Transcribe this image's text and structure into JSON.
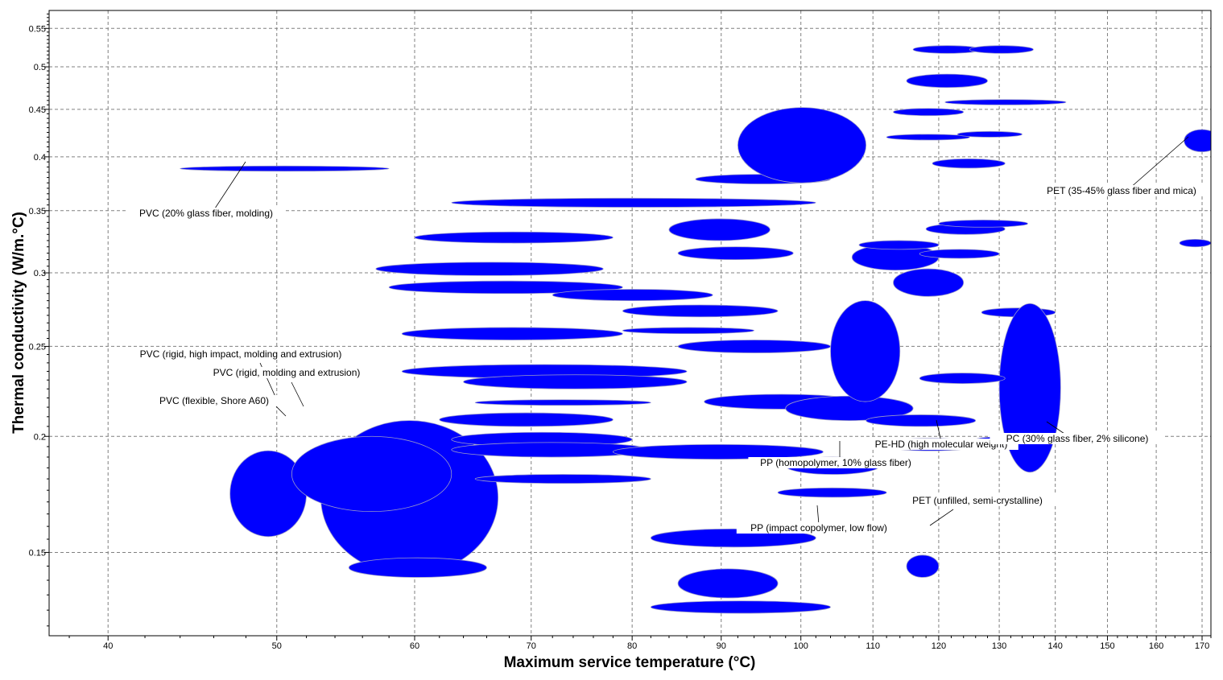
{
  "chart_data": {
    "type": "scatter",
    "title": "",
    "xlabel": "Maximum service temperature (°C)",
    "ylabel": "Thermal conductivity (W/m.°C)",
    "x_scale": "log",
    "y_scale": "log",
    "xlim": [
      37,
      172
    ],
    "ylim": [
      0.122,
      0.575
    ],
    "grid": true,
    "x_ticks": [
      40,
      50,
      60,
      70,
      80,
      90,
      100,
      110,
      120,
      130,
      140,
      150,
      160,
      170
    ],
    "y_ticks": [
      0.15,
      0.2,
      0.25,
      0.3,
      0.35,
      0.4,
      0.45,
      0.5,
      0.55
    ],
    "mark_color": "#0000ff",
    "mark_shape": "ellipse",
    "points": [
      {
        "x_range": [
          53,
          67
        ],
        "y_range": [
          0.142,
          0.208
        ]
      },
      {
        "x_range": [
          47,
          52
        ],
        "y_range": [
          0.156,
          0.193
        ]
      },
      {
        "x_range": [
          55,
          66
        ],
        "y_range": [
          0.141,
          0.148
        ]
      },
      {
        "x_range": [
          51,
          63
        ],
        "y_range": [
          0.166,
          0.2
        ]
      },
      {
        "x_range": [
          65,
          82
        ],
        "y_range": [
          0.178,
          0.182
        ]
      },
      {
        "x_range": [
          44,
          58
        ],
        "y_range": [
          0.386,
          0.391
        ]
      },
      {
        "x_range": [
          63,
          102
        ],
        "y_range": [
          0.353,
          0.361
        ]
      },
      {
        "x_range": [
          60,
          78
        ],
        "y_range": [
          0.323,
          0.332
        ]
      },
      {
        "x_range": [
          57,
          77
        ],
        "y_range": [
          0.298,
          0.308
        ]
      },
      {
        "x_range": [
          58,
          79
        ],
        "y_range": [
          0.285,
          0.294
        ]
      },
      {
        "x_range": [
          59,
          79
        ],
        "y_range": [
          0.254,
          0.262
        ]
      },
      {
        "x_range": [
          59,
          86
        ],
        "y_range": [
          0.231,
          0.239
        ]
      },
      {
        "x_range": [
          64,
          86
        ],
        "y_range": [
          0.225,
          0.233
        ]
      },
      {
        "x_range": [
          62,
          78
        ],
        "y_range": [
          0.205,
          0.212
        ]
      },
      {
        "x_range": [
          63,
          80
        ],
        "y_range": [
          0.195,
          0.202
        ]
      },
      {
        "x_range": [
          63,
          82
        ],
        "y_range": [
          0.19,
          0.197
        ]
      },
      {
        "x_range": [
          65,
          82
        ],
        "y_range": [
          0.216,
          0.219
        ]
      },
      {
        "x_range": [
          72,
          89
        ],
        "y_range": [
          0.28,
          0.288
        ]
      },
      {
        "x_range": [
          79,
          97
        ],
        "y_range": [
          0.269,
          0.277
        ]
      },
      {
        "x_range": [
          79,
          94
        ],
        "y_range": [
          0.258,
          0.262
        ]
      },
      {
        "x_range": [
          85,
          104
        ],
        "y_range": [
          0.246,
          0.254
        ]
      },
      {
        "x_range": [
          78,
          103
        ],
        "y_range": [
          0.189,
          0.196
        ]
      },
      {
        "x_range": [
          85,
          99
        ],
        "y_range": [
          0.31,
          0.32
        ]
      },
      {
        "x_range": [
          84,
          96
        ],
        "y_range": [
          0.325,
          0.343
        ]
      },
      {
        "x_range": [
          87,
          104
        ],
        "y_range": [
          0.374,
          0.383
        ]
      },
      {
        "x_range": [
          92,
          109
        ],
        "y_range": [
          0.375,
          0.452
        ]
      },
      {
        "x_range": [
          88,
          108
        ],
        "y_range": [
          0.214,
          0.222
        ]
      },
      {
        "x_range": [
          98,
          116
        ],
        "y_range": [
          0.208,
          0.221
        ]
      },
      {
        "x_range": [
          98,
          111
        ],
        "y_range": [
          0.182,
          0.19
        ]
      },
      {
        "x_range": [
          82,
          102
        ],
        "y_range": [
          0.152,
          0.159
        ]
      },
      {
        "x_range": [
          85,
          97
        ],
        "y_range": [
          0.134,
          0.144
        ]
      },
      {
        "x_range": [
          82,
          104
        ],
        "y_range": [
          0.129,
          0.133
        ]
      },
      {
        "x_range": [
          97,
          112
        ],
        "y_range": [
          0.172,
          0.176
        ]
      },
      {
        "x_range": [
          104,
          114
        ],
        "y_range": [
          0.218,
          0.28
        ]
      },
      {
        "x_range": [
          107,
          120
        ],
        "y_range": [
          0.302,
          0.322
        ]
      },
      {
        "x_range": [
          108,
          120
        ],
        "y_range": [
          0.318,
          0.325
        ]
      },
      {
        "x_range": [
          113,
          124
        ],
        "y_range": [
          0.283,
          0.303
        ]
      },
      {
        "x_range": [
          118,
          131
        ],
        "y_range": [
          0.33,
          0.339
        ]
      },
      {
        "x_range": [
          112,
          125
        ],
        "y_range": [
          0.417,
          0.423
        ]
      },
      {
        "x_range": [
          113,
          124
        ],
        "y_range": [
          0.443,
          0.451
        ]
      },
      {
        "x_range": [
          119,
          131
        ],
        "y_range": [
          0.389,
          0.398
        ]
      },
      {
        "x_range": [
          123,
          134
        ],
        "y_range": [
          0.42,
          0.426
        ]
      },
      {
        "x_range": [
          115,
          128
        ],
        "y_range": [
          0.475,
          0.491
        ]
      },
      {
        "x_range": [
          116,
          127
        ],
        "y_range": [
          0.517,
          0.527
        ]
      },
      {
        "x_range": [
          125,
          136
        ],
        "y_range": [
          0.517,
          0.527
        ]
      },
      {
        "x_range": [
          121,
          142
        ],
        "y_range": [
          0.455,
          0.461
        ]
      },
      {
        "x_range": [
          120,
          135
        ],
        "y_range": [
          0.336,
          0.342
        ]
      },
      {
        "x_range": [
          117,
          130
        ],
        "y_range": [
          0.311,
          0.318
        ]
      },
      {
        "x_range": [
          127,
          140
        ],
        "y_range": [
          0.269,
          0.275
        ]
      },
      {
        "x_range": [
          130,
          141
        ],
        "y_range": [
          0.183,
          0.278
        ]
      },
      {
        "x_range": [
          109,
          126
        ],
        "y_range": [
          0.205,
          0.211
        ]
      },
      {
        "x_range": [
          111,
          127
        ],
        "y_range": [
          0.193,
          0.199
        ]
      },
      {
        "x_range": [
          117,
          131
        ],
        "y_range": [
          0.228,
          0.234
        ]
      },
      {
        "x_range": [
          126,
          141
        ],
        "y_range": [
          0.197,
          0.2
        ]
      },
      {
        "x_range": [
          115,
          120
        ],
        "y_range": [
          0.141,
          0.149
        ]
      },
      {
        "x_range": [
          166,
          174
        ],
        "y_range": [
          0.405,
          0.428
        ]
      },
      {
        "x_range": [
          165,
          172
        ],
        "y_range": [
          0.32,
          0.326
        ]
      }
    ],
    "annotations": [
      "PVC (20% glass fiber, molding)",
      "PVC (rigid, high impact, molding and extrusion)",
      "PVC (rigid, molding and extrusion)",
      "PVC (flexible, Shore A60)",
      "PET (35-45% glass fiber and mica)",
      "PE-HD (high molecular weight)",
      "PC (30% glass fiber, 2% silicone)",
      "PP (homopolymer, 10% glass fiber)",
      "PET (unfilled, semi-crystalline)",
      "PP (impact copolymer, low flow)"
    ]
  }
}
